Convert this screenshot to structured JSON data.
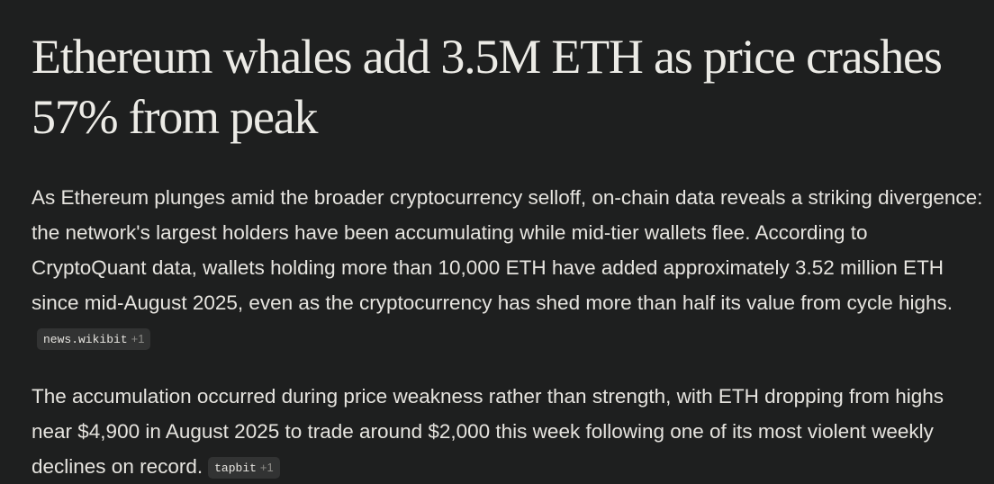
{
  "article": {
    "title": "Ethereum whales add 3.5M ETH as price crashes 57% from peak",
    "paragraphs": [
      {
        "text": "As Ethereum plunges amid the broader cryptocurrency selloff, on-chain data reveals a striking divergence: the network's largest holders have been accumulating while mid-tier wallets flee. According to CryptoQuant data, wallets holding more than 10,000 ETH have added approximately 3.52 million ETH since mid-August 2025, even as the cryptocurrency has shed more than half its value from cycle highs.",
        "citation": {
          "source": "news.wikibit",
          "extra": "+1"
        }
      },
      {
        "text": "The accumulation occurred during price weakness rather than strength, with ETH dropping from highs near $4,900 in August 2025 to trade around $2,000 this week following one of its most violent weekly declines on record.",
        "citation": {
          "source": "tapbit",
          "extra": "+1"
        }
      }
    ]
  }
}
